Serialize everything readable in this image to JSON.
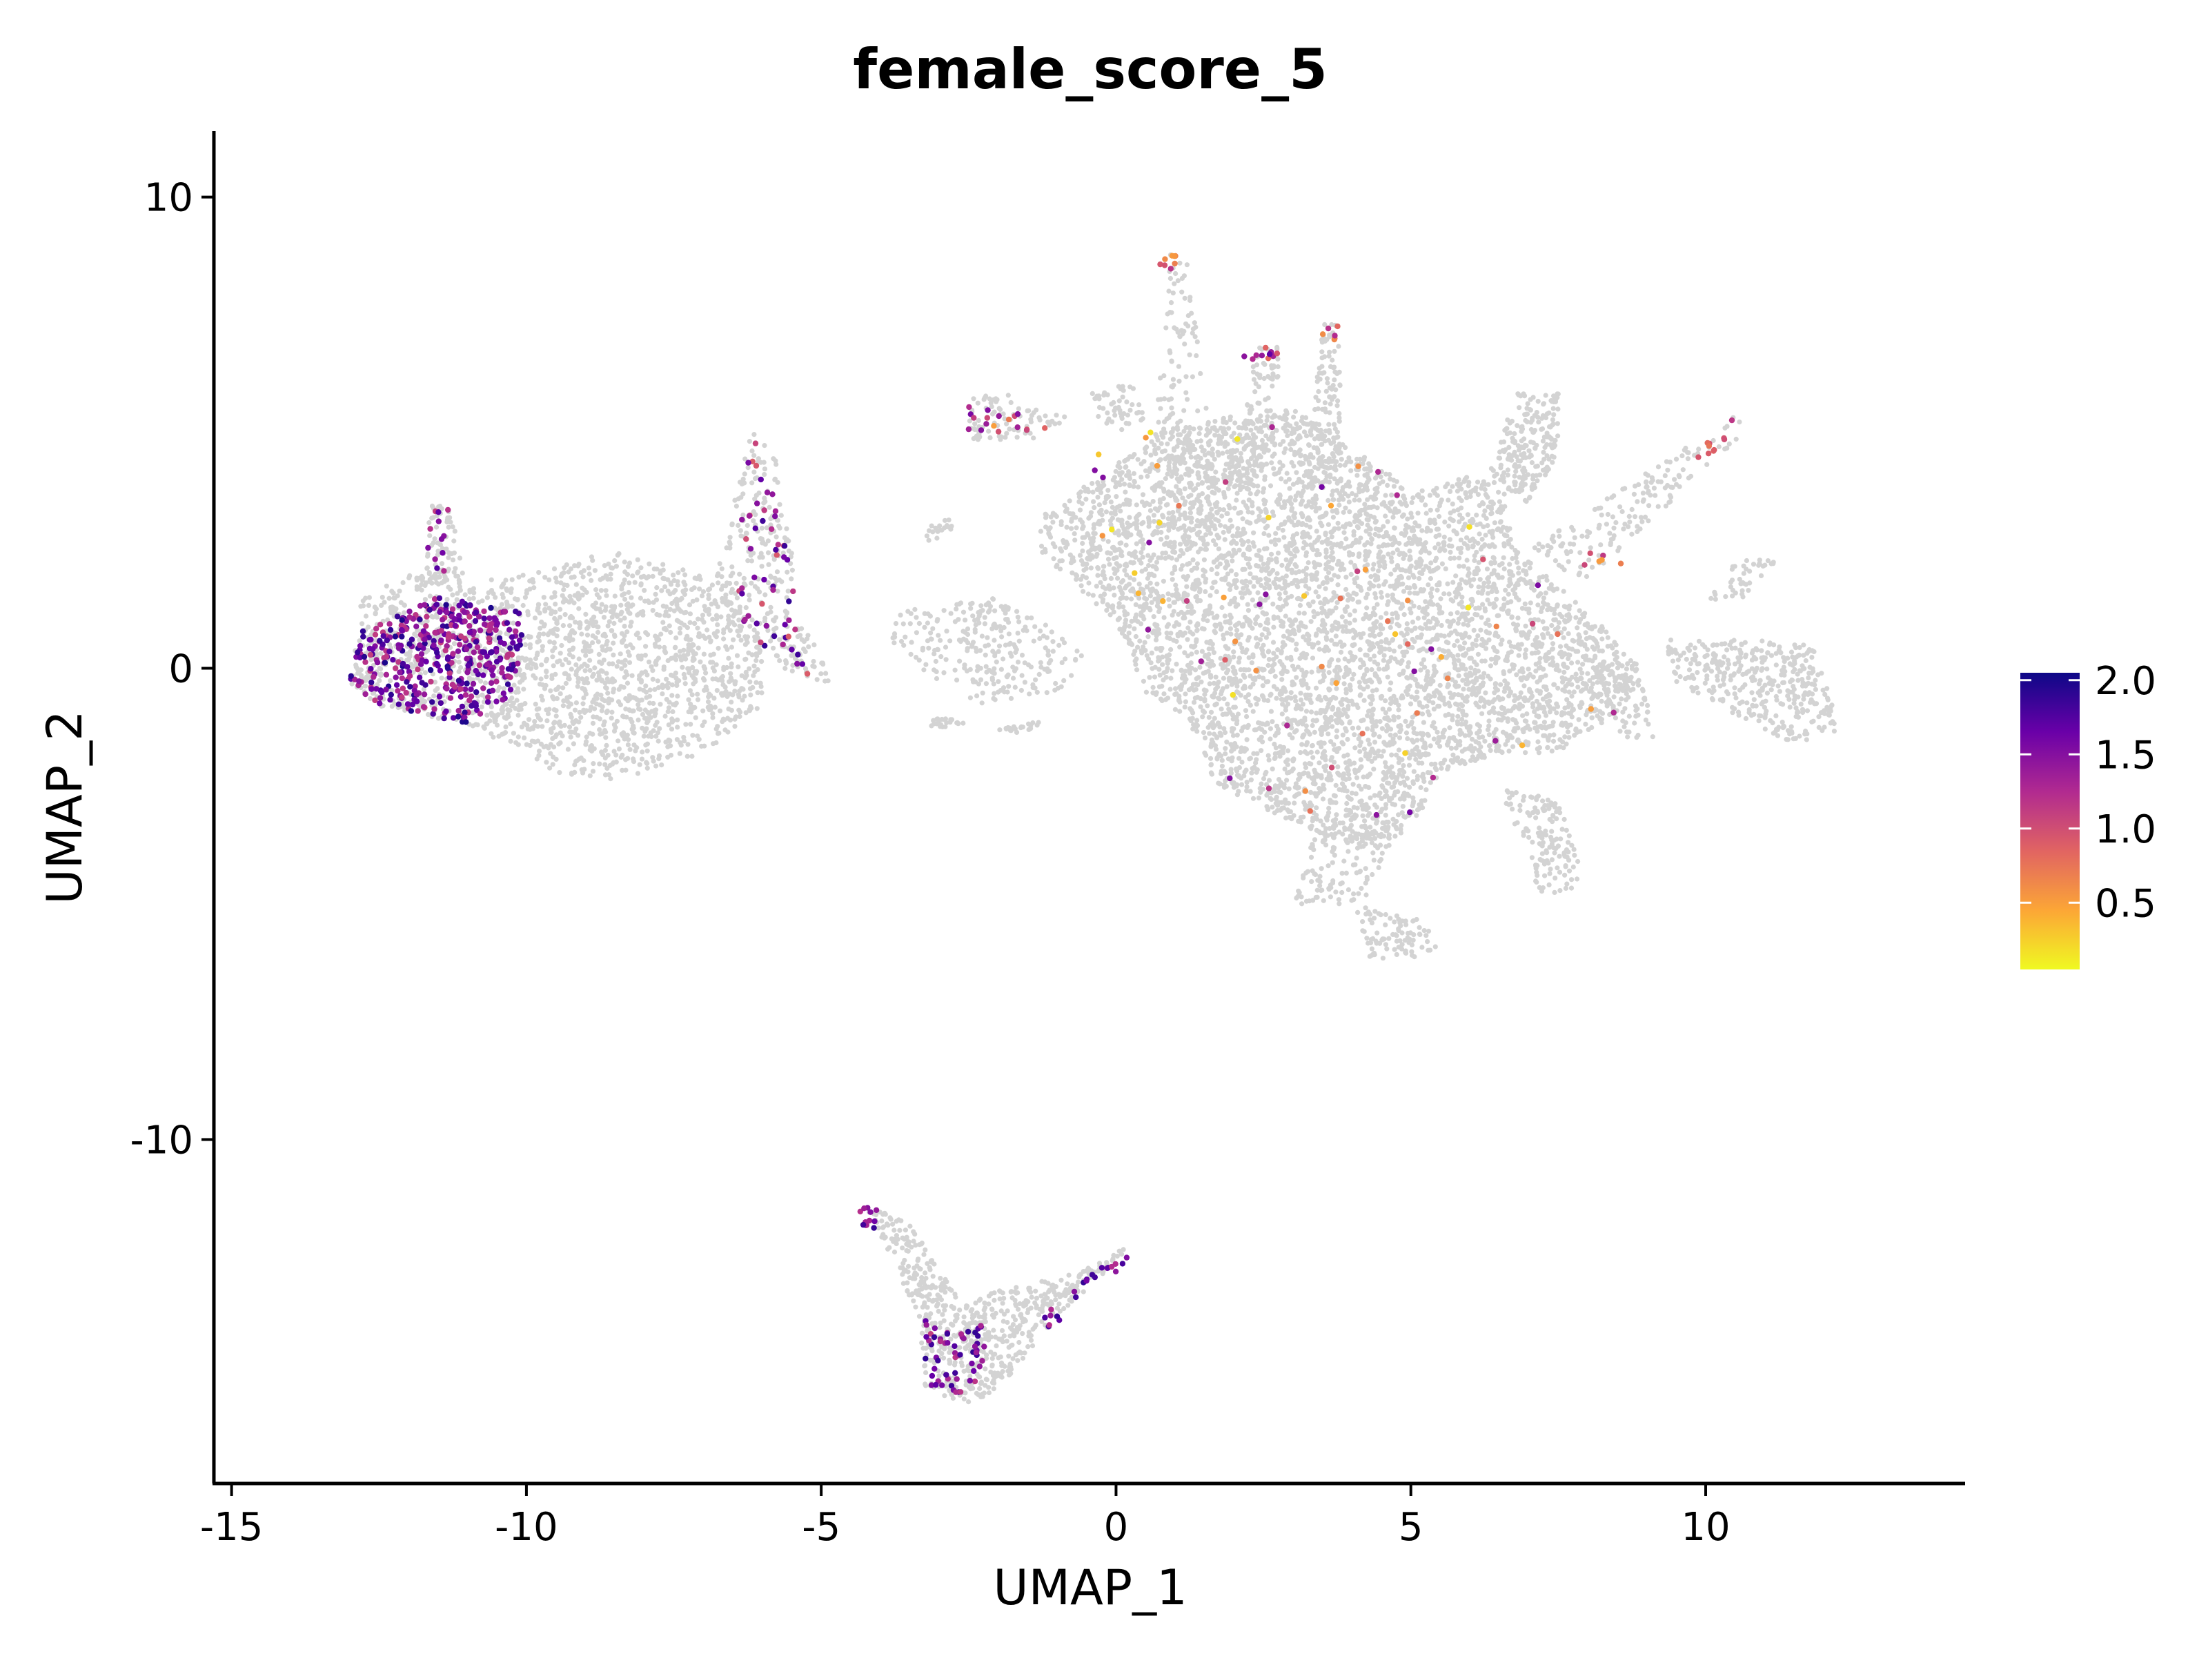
{
  "chart_data": {
    "type": "scatter",
    "title": "female_score_5",
    "xlabel": "UMAP_1",
    "ylabel": "UMAP_2",
    "xlim": [
      -15.3,
      14.4
    ],
    "ylim": [
      -17.3,
      11.4
    ],
    "x_ticks": [
      {
        "value": -15,
        "label": "-15"
      },
      {
        "value": -10,
        "label": "-10"
      },
      {
        "value": -5,
        "label": "-5"
      },
      {
        "value": 0,
        "label": "0"
      },
      {
        "value": 5,
        "label": "5"
      },
      {
        "value": 10,
        "label": "10"
      }
    ],
    "y_ticks": [
      {
        "value": 10,
        "label": "10"
      },
      {
        "value": 0,
        "label": "0"
      },
      {
        "value": -10,
        "label": "-10"
      }
    ],
    "grid": false,
    "background_color": "#d3d3d3",
    "colorscale": {
      "name": "plasma",
      "min": 0.05,
      "max": 2.05,
      "stops": [
        "#f0f921",
        "#fca636",
        "#e16462",
        "#b12a90",
        "#6a00a8",
        "#0d0887"
      ],
      "ticks": [
        {
          "value": 2.0,
          "label": "2.0"
        },
        {
          "value": 1.5,
          "label": "1.5"
        },
        {
          "value": 1.0,
          "label": "1.0"
        },
        {
          "value": 0.5,
          "label": "0.5"
        }
      ],
      "legend_position": "right"
    },
    "background_clusters": [
      {
        "points": [
          [
            -13.0,
            -0.3
          ],
          [
            -12.8,
            1.5
          ],
          [
            -11.5,
            2.3
          ],
          [
            -11.0,
            1.8
          ],
          [
            -10.0,
            2.0
          ],
          [
            -8.5,
            2.5
          ],
          [
            -7.0,
            2.0
          ],
          [
            -6.5,
            1.5
          ],
          [
            -6.0,
            0.5
          ],
          [
            -6.0,
            -0.8
          ],
          [
            -7.0,
            -1.8
          ],
          [
            -8.5,
            -2.4
          ],
          [
            -9.5,
            -2.2
          ],
          [
            -11.0,
            -1.2
          ],
          [
            -12.5,
            -0.8
          ]
        ],
        "count": 1800
      },
      {
        "points": [
          [
            -11.8,
            1.8
          ],
          [
            -11.6,
            3.6
          ],
          [
            -11.3,
            3.5
          ],
          [
            -11.0,
            1.8
          ]
        ],
        "count": 60
      },
      {
        "points": [
          [
            -6.8,
            1.8
          ],
          [
            -6.2,
            5.0
          ],
          [
            -5.8,
            4.8
          ],
          [
            -5.3,
            1.0
          ],
          [
            -4.8,
            -0.3
          ],
          [
            -5.6,
            -0.2
          ],
          [
            -6.5,
            0.8
          ]
        ],
        "count": 260
      },
      {
        "points": [
          [
            -3.8,
            1.2
          ],
          [
            -2.0,
            1.5
          ],
          [
            -1.0,
            0.8
          ],
          [
            -0.5,
            0.2
          ],
          [
            -1.0,
            -0.5
          ],
          [
            -2.5,
            -0.8
          ],
          [
            -3.8,
            0.5
          ]
        ],
        "count": 260
      },
      {
        "points": [
          [
            -3.3,
            3.0
          ],
          [
            -2.8,
            3.2
          ],
          [
            -2.7,
            2.8
          ],
          [
            -3.2,
            2.7
          ]
        ],
        "count": 20
      },
      {
        "points": [
          [
            -1.3,
            3.2
          ],
          [
            1.0,
            5.2
          ],
          [
            3.0,
            5.5
          ],
          [
            4.2,
            4.5
          ],
          [
            5.0,
            3.8
          ],
          [
            6.5,
            4.2
          ],
          [
            6.8,
            2.5
          ],
          [
            8.0,
            1.2
          ],
          [
            9.0,
            0.0
          ],
          [
            8.5,
            -1.0
          ],
          [
            7.5,
            -1.8
          ],
          [
            6.5,
            -1.8
          ],
          [
            5.5,
            -2.2
          ],
          [
            5.2,
            -3.0
          ],
          [
            4.5,
            -4.0
          ],
          [
            3.5,
            -3.5
          ],
          [
            2.5,
            -3.0
          ],
          [
            1.5,
            -2.3
          ],
          [
            1.5,
            -1.5
          ],
          [
            0.5,
            -0.5
          ],
          [
            0.0,
            1.0
          ],
          [
            -0.8,
            1.8
          ],
          [
            -1.3,
            2.5
          ]
        ],
        "count": 5200
      },
      {
        "points": [
          [
            0.5,
            2.5
          ],
          [
            0.9,
            8.8
          ],
          [
            1.2,
            8.8
          ],
          [
            1.8,
            3.0
          ]
        ],
        "count": 180
      },
      {
        "points": [
          [
            1.8,
            3.5
          ],
          [
            2.4,
            6.9
          ],
          [
            2.8,
            6.8
          ],
          [
            2.6,
            4.0
          ]
        ],
        "count": 120
      },
      {
        "points": [
          [
            3.2,
            3.8
          ],
          [
            3.5,
            7.3
          ],
          [
            3.8,
            7.3
          ],
          [
            3.8,
            4.2
          ]
        ],
        "count": 120
      },
      {
        "points": [
          [
            -2.5,
            5.8
          ],
          [
            -1.8,
            5.8
          ],
          [
            -0.8,
            5.3
          ],
          [
            -1.5,
            4.8
          ],
          [
            -2.5,
            4.8
          ]
        ],
        "count": 80
      },
      {
        "points": [
          [
            -0.4,
            6.0
          ],
          [
            0.3,
            6.0
          ],
          [
            0.5,
            5.3
          ],
          [
            0.0,
            5.0
          ],
          [
            -0.4,
            5.4
          ]
        ],
        "count": 50
      },
      {
        "points": [
          [
            6.3,
            4.0
          ],
          [
            6.8,
            5.9
          ],
          [
            7.5,
            5.9
          ],
          [
            7.5,
            4.5
          ],
          [
            7.0,
            3.5
          ]
        ],
        "count": 220
      },
      {
        "points": [
          [
            7.0,
            2.5
          ],
          [
            10.5,
            5.4
          ],
          [
            10.8,
            5.2
          ],
          [
            8.0,
            1.8
          ]
        ],
        "count": 160
      },
      {
        "points": [
          [
            8.0,
            0.0
          ],
          [
            8.8,
            0.2
          ],
          [
            9.2,
            -1.5
          ],
          [
            8.5,
            -1.5
          ]
        ],
        "count": 70
      },
      {
        "points": [
          [
            9.3,
            0.6
          ],
          [
            10.8,
            0.6
          ],
          [
            11.8,
            0.5
          ],
          [
            12.3,
            -1.3
          ],
          [
            11.5,
            -1.6
          ],
          [
            10.5,
            -1.0
          ],
          [
            9.5,
            -0.3
          ]
        ],
        "count": 380
      },
      {
        "points": [
          [
            10.0,
            1.5
          ],
          [
            10.6,
            2.4
          ],
          [
            11.2,
            2.3
          ],
          [
            10.5,
            1.3
          ]
        ],
        "count": 40
      },
      {
        "points": [
          [
            6.5,
            -2.5
          ],
          [
            7.5,
            -2.8
          ],
          [
            8.0,
            -4.7
          ],
          [
            7.2,
            -4.8
          ]
        ],
        "count": 140
      },
      {
        "points": [
          [
            3.5,
            -3.0
          ],
          [
            4.8,
            -3.2
          ],
          [
            4.2,
            -5.0
          ],
          [
            3.0,
            -5.0
          ]
        ],
        "count": 140
      },
      {
        "points": [
          [
            4.0,
            -5.0
          ],
          [
            5.2,
            -5.3
          ],
          [
            5.5,
            -6.1
          ],
          [
            4.3,
            -6.2
          ]
        ],
        "count": 90
      },
      {
        "points": [
          [
            -3.0,
            -1.0
          ],
          [
            -2.5,
            -1.2
          ],
          [
            -3.3,
            -1.3
          ]
        ],
        "count": 25
      },
      {
        "points": [
          [
            -2.0,
            -1.3
          ],
          [
            -1.2,
            -1.1
          ],
          [
            -1.5,
            -1.4
          ]
        ],
        "count": 20
      },
      {
        "points": [
          [
            -4.3,
            -11.3
          ],
          [
            -3.5,
            -11.8
          ],
          [
            -2.6,
            -13.5
          ],
          [
            -2.0,
            -13.2
          ],
          [
            -0.6,
            -12.8
          ],
          [
            0.3,
            -12.2
          ],
          [
            -1.0,
            -13.8
          ],
          [
            -2.0,
            -15.3
          ],
          [
            -2.5,
            -15.6
          ],
          [
            -3.3,
            -15.3
          ],
          [
            -3.3,
            -14.0
          ],
          [
            -3.8,
            -12.5
          ]
        ],
        "count": 640
      }
    ],
    "highlight_regions": [
      {
        "points": [
          [
            -13.0,
            -0.3
          ],
          [
            -12.8,
            0.8
          ],
          [
            -11.5,
            1.5
          ],
          [
            -10.0,
            1.2
          ],
          [
            -10.2,
            -0.5
          ],
          [
            -11.0,
            -1.2
          ],
          [
            -12.5,
            -0.8
          ]
        ],
        "count": 420,
        "value_range": [
          1.1,
          2.0
        ]
      },
      {
        "points": [
          [
            -11.8,
            2.0
          ],
          [
            -11.6,
            3.6
          ],
          [
            -11.3,
            3.5
          ],
          [
            -11.2,
            2.0
          ]
        ],
        "count": 12,
        "value_range": [
          1.0,
          1.8
        ]
      },
      {
        "points": [
          [
            -6.5,
            1.2
          ],
          [
            -6.2,
            5.0
          ],
          [
            -5.8,
            4.8
          ],
          [
            -5.4,
            1.0
          ],
          [
            -5.0,
            -0.2
          ],
          [
            -5.6,
            -0.2
          ],
          [
            -6.3,
            0.8
          ]
        ],
        "count": 55,
        "value_range": [
          0.9,
          1.9
        ]
      },
      {
        "points": [
          [
            -3.3,
            -13.8
          ],
          [
            -2.2,
            -13.9
          ],
          [
            -2.3,
            -15.5
          ],
          [
            -3.2,
            -15.2
          ]
        ],
        "count": 60,
        "value_range": [
          1.1,
          1.9
        ]
      },
      {
        "points": [
          [
            -1.5,
            -13.9
          ],
          [
            0.2,
            -12.2
          ],
          [
            0.3,
            -12.5
          ],
          [
            -1.2,
            -14.1
          ]
        ],
        "count": 22,
        "value_range": [
          1.2,
          1.9
        ]
      },
      {
        "points": [
          [
            -4.4,
            -11.4
          ],
          [
            -4.0,
            -11.4
          ],
          [
            -4.1,
            -12.0
          ],
          [
            -4.4,
            -12.0
          ]
        ],
        "count": 12,
        "value_range": [
          1.2,
          1.9
        ]
      },
      {
        "points": [
          [
            -2.5,
            5.8
          ],
          [
            -1.5,
            5.6
          ],
          [
            -1.2,
            5.1
          ],
          [
            -2.5,
            4.9
          ]
        ],
        "count": 18,
        "value_range": [
          0.5,
          1.6
        ]
      },
      {
        "points": [
          [
            0.7,
            8.9
          ],
          [
            1.2,
            8.8
          ],
          [
            1.0,
            8.3
          ],
          [
            0.6,
            8.5
          ]
        ],
        "count": 8,
        "value_range": [
          0.5,
          1.2
        ]
      },
      {
        "points": [
          [
            2.1,
            6.9
          ],
          [
            2.8,
            6.8
          ],
          [
            2.6,
            6.4
          ],
          [
            2.2,
            6.5
          ]
        ],
        "count": 10,
        "value_range": [
          0.6,
          1.7
        ]
      },
      {
        "points": [
          [
            3.5,
            7.3
          ],
          [
            3.8,
            7.3
          ],
          [
            3.8,
            6.8
          ],
          [
            3.5,
            6.9
          ]
        ],
        "count": 6,
        "value_range": [
          0.6,
          1.3
        ]
      },
      {
        "points": [
          [
            9.8,
            4.5
          ],
          [
            10.5,
            5.4
          ],
          [
            10.6,
            5.2
          ],
          [
            9.9,
            4.3
          ]
        ],
        "count": 10,
        "value_range": [
          0.6,
          1.2
        ]
      },
      {
        "points": [
          [
            7.8,
            2.4
          ],
          [
            8.6,
            2.6
          ],
          [
            8.8,
            2.0
          ],
          [
            8.0,
            2.1
          ]
        ],
        "count": 6,
        "value_range": [
          0.5,
          1.3
        ]
      },
      {
        "points": [
          [
            -1.3,
            3.2
          ],
          [
            0.0,
            5.0
          ],
          [
            3.0,
            5.5
          ],
          [
            5.0,
            3.8
          ],
          [
            7.0,
            2.5
          ],
          [
            8.5,
            -1.0
          ],
          [
            5.5,
            -2.2
          ],
          [
            4.5,
            -4.0
          ],
          [
            1.5,
            -2.3
          ],
          [
            0.0,
            1.0
          ]
        ],
        "count": 70,
        "value_range": [
          0.1,
          1.6
        ]
      }
    ]
  }
}
